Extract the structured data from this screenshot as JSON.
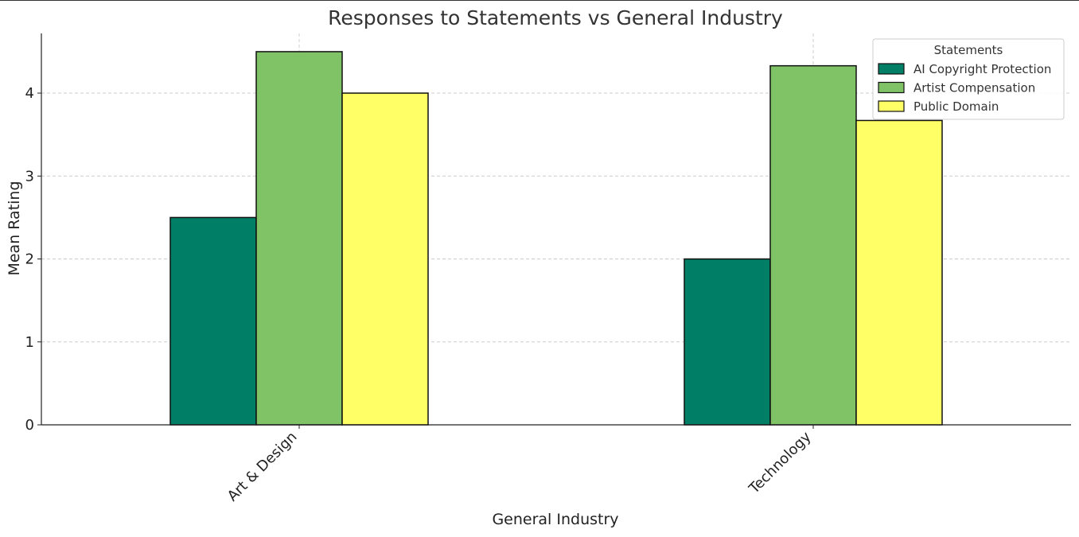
{
  "chart_data": {
    "type": "bar",
    "title": "Responses to Statements vs General Industry",
    "xlabel": "General Industry",
    "ylabel": "Mean Rating",
    "categories": [
      "Art & Design",
      "Technology"
    ],
    "series": [
      {
        "name": "AI Copyright Protection",
        "values": [
          2.5,
          2.0
        ],
        "color": "#007f66"
      },
      {
        "name": "Artist Compensation",
        "values": [
          4.5,
          4.33
        ],
        "color": "#80c266"
      },
      {
        "name": "Public Domain",
        "values": [
          4.0,
          3.67
        ],
        "color": "#ffff66"
      }
    ],
    "ylim": [
      0,
      4.72
    ],
    "yticks": [
      0,
      1,
      2,
      3,
      4
    ],
    "grid": true,
    "legend": {
      "title": "Statements",
      "placement": "top-right"
    }
  }
}
